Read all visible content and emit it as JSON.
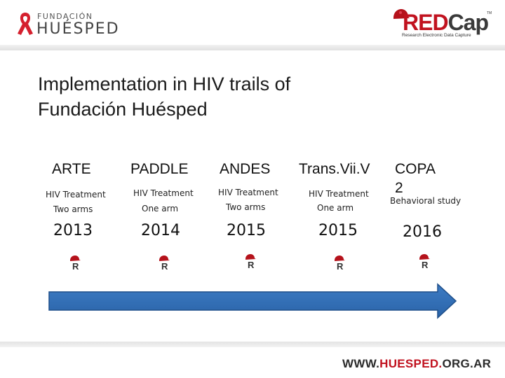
{
  "header": {
    "logo_top": "FUNDACIÓN",
    "logo_main": "HUÉSPED",
    "redcap_part1": "RED",
    "redcap_part2": "Cap",
    "redcap_tm": "TM",
    "redcap_sub": "Research Electronic Data Capture"
  },
  "title": {
    "line1": "Implementation in HIV trails of",
    "line2": "Fundación Huésped"
  },
  "trials": [
    {
      "name": "ARTE",
      "type": "HIV Treatment",
      "arms": "Two arms",
      "year": "2013"
    },
    {
      "name": "PADDLE",
      "type": "HIV Treatment",
      "arms": "One arm",
      "year": "2014"
    },
    {
      "name": "ANDES",
      "type": "HIV Treatment",
      "arms": "Two arms",
      "year": "2015"
    },
    {
      "name": "Trans.Vii.V",
      "type": "HIV Treatment",
      "arms": "One arm",
      "year": "2015"
    },
    {
      "name": "COPA",
      "name2": "2",
      "type": "Behavioral study",
      "year": "2016"
    }
  ],
  "icons": {
    "redcap_mini": "redcap-r-icon",
    "timeline": "arrow-right"
  },
  "footer": {
    "url_part1": "WWW.",
    "url_part2": "HUESPED.",
    "url_part3": "ORG.AR"
  },
  "colors": {
    "accent_red": "#c1121f",
    "arrow_blue": "#2e6fb7"
  }
}
